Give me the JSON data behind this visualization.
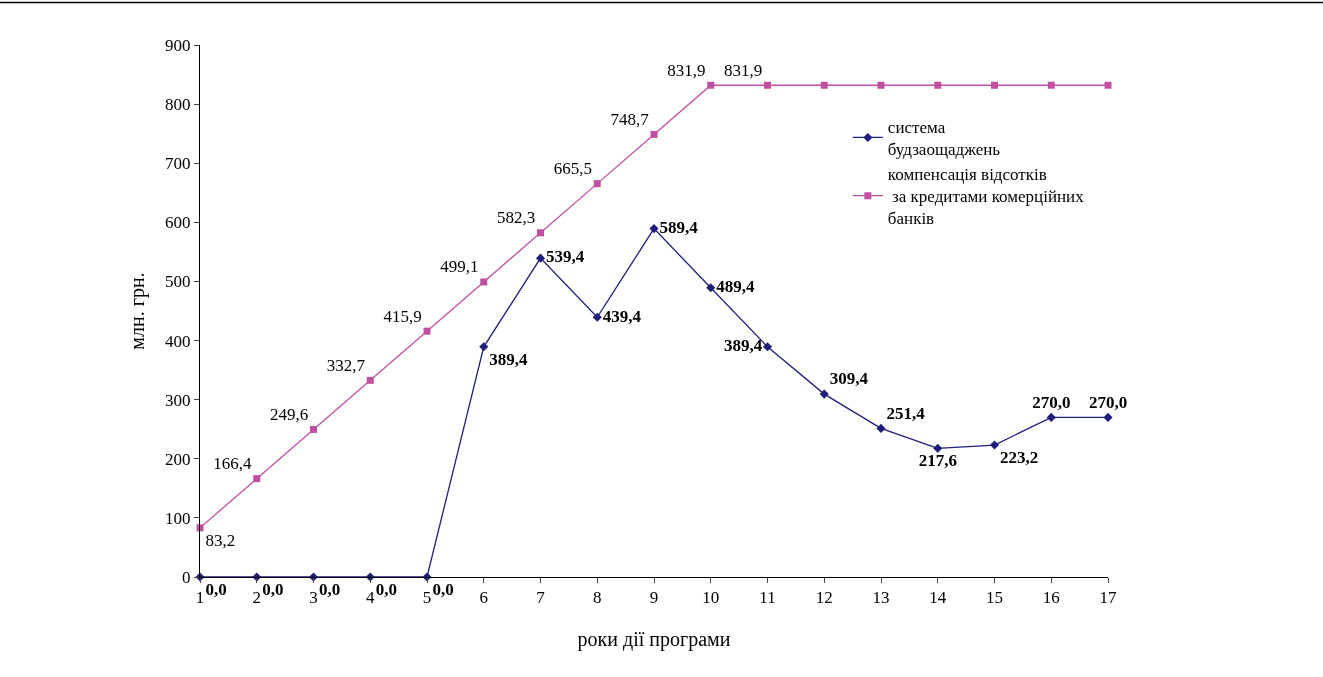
{
  "chart_data": {
    "type": "line",
    "xlabel": "роки дії програми",
    "ylabel": "млн. грн.",
    "x": [
      1,
      2,
      3,
      4,
      5,
      6,
      7,
      8,
      9,
      10,
      11,
      12,
      13,
      14,
      15,
      16,
      17
    ],
    "xlim": [
      1,
      17
    ],
    "xticks": [
      1,
      2,
      3,
      4,
      5,
      6,
      7,
      8,
      9,
      10,
      11,
      12,
      13,
      14,
      15,
      16,
      17
    ],
    "ylim": [
      0,
      900
    ],
    "yticks": [
      0,
      100,
      200,
      300,
      400,
      500,
      600,
      700,
      800,
      900
    ],
    "legend": "top right",
    "line_style": "solid",
    "series": [
      {
        "name": "система\nбудзаощаджень",
        "color": "#1f1f7a",
        "marker": "diamond",
        "values": [
          0,
          0,
          0,
          0,
          0,
          389.4,
          539.4,
          439.4,
          589.4,
          489.4,
          389.4,
          309.4,
          251.4,
          217.6,
          223.2,
          270.0,
          270.0
        ],
        "value_labels": [
          "0,0",
          "0,0",
          "0,0",
          "0,0",
          "0,0",
          "389,4",
          "539,4",
          "439,4",
          "589,4",
          "489,4",
          "389,4",
          "309,4",
          "251,4",
          "217,6",
          "223,2",
          "270,0",
          "270,0"
        ]
      },
      {
        "name": "компенсація відсотків\n за кредитами комерційних\nбанків",
        "color": "#c0509f",
        "marker": "square",
        "values": [
          83.2,
          166.4,
          249.6,
          332.7,
          415.9,
          499.1,
          582.3,
          665.5,
          748.7,
          831.9,
          831.9,
          831.9,
          831.9,
          831.9,
          831.9,
          831.9,
          831.9
        ],
        "value_labels": [
          "83,2",
          "166,4",
          "249,6",
          "332,7",
          "415,9",
          "499,1",
          "582,3",
          "665,5",
          "748,7",
          "831,9",
          "831,9",
          null,
          null,
          null,
          null,
          null,
          null
        ]
      }
    ]
  }
}
